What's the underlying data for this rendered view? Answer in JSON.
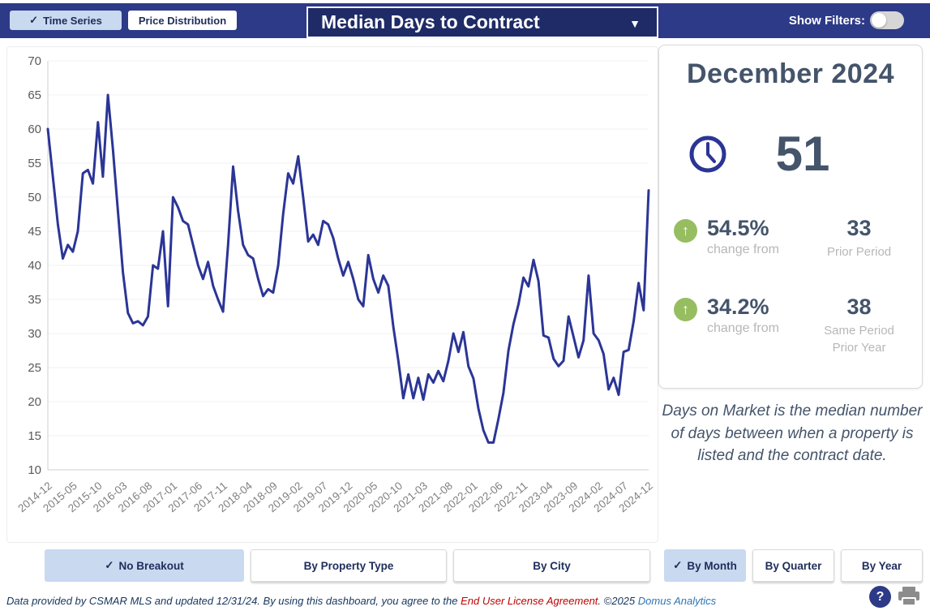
{
  "top_bar": {
    "tabs": [
      {
        "label": "Time Series",
        "selected": true
      },
      {
        "label": "Price Distribution",
        "selected": false
      }
    ],
    "metric_dropdown": {
      "value": "Median Days to Contract"
    },
    "show_filters_label": "Show Filters:",
    "filters_toggle_on": false
  },
  "icons": {
    "check": "✓",
    "caret_down": "▼",
    "arrow_up": "↑",
    "question": "?"
  },
  "chart_data": {
    "type": "line",
    "title": "Median Days to Contract",
    "x_start": "2014-12",
    "x_end": "2024-12",
    "x_tick_interval_months": 5,
    "x_ticks": [
      "2014-12",
      "2015-05",
      "2015-10",
      "2016-03",
      "2016-08",
      "2017-01",
      "2017-06",
      "2017-11",
      "2018-04",
      "2018-09",
      "2019-02",
      "2019-07",
      "2019-12",
      "2020-05",
      "2020-10",
      "2021-03",
      "2021-08",
      "2022-01",
      "2022-06",
      "2022-11",
      "2023-04",
      "2023-09",
      "2024-02",
      "2024-07",
      "2024-12"
    ],
    "values": [
      60,
      53,
      46,
      41,
      43,
      42,
      45,
      53.5,
      54,
      52,
      61,
      53,
      65,
      57,
      48,
      39,
      33,
      31.5,
      31.8,
      31.2,
      32.5,
      40,
      39.5,
      45,
      34,
      50,
      48.5,
      46.5,
      46,
      43,
      40,
      38,
      40.5,
      37,
      35,
      33.2,
      43,
      54.5,
      48,
      43,
      41.5,
      41,
      38,
      35.5,
      36.5,
      36,
      40,
      47.5,
      53.5,
      52,
      56,
      50,
      43.5,
      44.5,
      43,
      46.5,
      46,
      44,
      41,
      38.5,
      40.5,
      38,
      35,
      34,
      41.5,
      38,
      36,
      38.5,
      37,
      31,
      26,
      20.5,
      24,
      20.5,
      23.5,
      20.3,
      24,
      22.8,
      24.5,
      23,
      26,
      30,
      27.3,
      30.2,
      25.2,
      23.4,
      19,
      15.8,
      14,
      14,
      17.5,
      21.3,
      27.5,
      31.4,
      34.3,
      38.2,
      36.9,
      40.8,
      37.7,
      29.7,
      29.4,
      26.3,
      25.2,
      26,
      32.5,
      29.5,
      26.5,
      29,
      38.5,
      30,
      29,
      27,
      21.8,
      23.5,
      21,
      27.3,
      27.6,
      31.8,
      37.4,
      33.4,
      51
    ],
    "ylim": [
      10,
      70
    ],
    "y_tick_step": 5,
    "grid": true,
    "line_color": "#2b3596",
    "legend": "none"
  },
  "panel": {
    "title": "December 2024",
    "current_value": "51",
    "stats": [
      {
        "pct": "54.5%",
        "pct_label": "change from",
        "value": "33",
        "value_label": "Prior Period"
      },
      {
        "pct": "34.2%",
        "pct_label": "change from",
        "value": "38",
        "value_label": "Same Period Prior Year"
      }
    ]
  },
  "description": "Days on Market is the median number of days between when a property is listed and the contract date.",
  "breakout_buttons": [
    {
      "label": "No Breakout",
      "selected": true
    },
    {
      "label": "By Property Type",
      "selected": false
    },
    {
      "label": "By City",
      "selected": false
    }
  ],
  "period_buttons": [
    {
      "label": "By Month",
      "selected": true
    },
    {
      "label": "By Quarter",
      "selected": false
    },
    {
      "label": "By Year",
      "selected": false
    }
  ],
  "footer": {
    "text_1": "Data provided by CSMAR MLS and updated 12/31/24.  By using this dashboard, you agree to the ",
    "license_link": "End User License Agreement",
    "text_2": ".  ©2025 ",
    "brand_link": "Domus Analytics"
  },
  "colors": {
    "topbar": "#2d3a87",
    "dropdown_bg": "#1f2b66",
    "selected_button": "#c9d9f0",
    "line": "#2b3596",
    "slate_text": "#44546a",
    "muted_text": "#b7b7b7",
    "green_badge": "#97bd61",
    "link_red": "#c00000",
    "link_blue": "#2e74b5"
  }
}
